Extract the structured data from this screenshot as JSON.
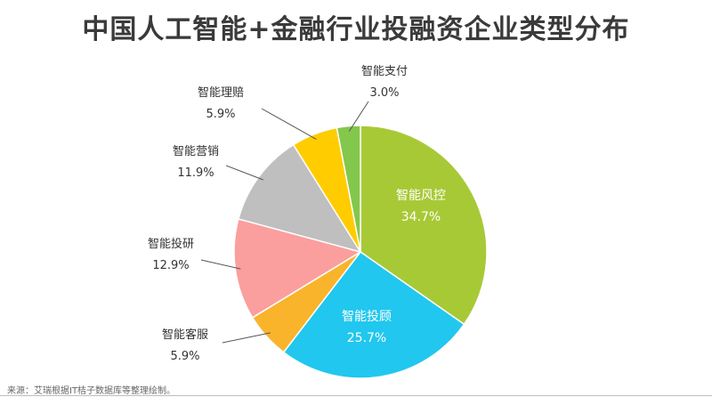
{
  "chart_data": {
    "type": "pie",
    "title": "中国人工智能+金融行业投融资企业类型分布",
    "slices": [
      {
        "name": "智能风控",
        "value": 34.7,
        "label": "34.7%",
        "color": "#A8C936",
        "label_inside": true
      },
      {
        "name": "智能投顾",
        "value": 25.7,
        "label": "25.7%",
        "color": "#21C7EE",
        "label_inside": true
      },
      {
        "name": "智能客服",
        "value": 5.9,
        "label": "5.9%",
        "color": "#F9B42B",
        "label_inside": false
      },
      {
        "name": "智能投研",
        "value": 12.9,
        "label": "12.9%",
        "color": "#FB9E9E",
        "label_inside": false
      },
      {
        "name": "智能营销",
        "value": 11.9,
        "label": "11.9%",
        "color": "#BFBFBF",
        "label_inside": false
      },
      {
        "name": "智能理赔",
        "value": 5.9,
        "label": "5.9%",
        "color": "#FFCC00",
        "label_inside": false
      },
      {
        "name": "智能支付",
        "value": 3.0,
        "label": "3.0%",
        "color": "#83C74C",
        "label_inside": false
      }
    ],
    "legend": "none"
  },
  "footer": {
    "source": "来源：艾瑞根据IT桔子数据库等整理绘制。"
  }
}
